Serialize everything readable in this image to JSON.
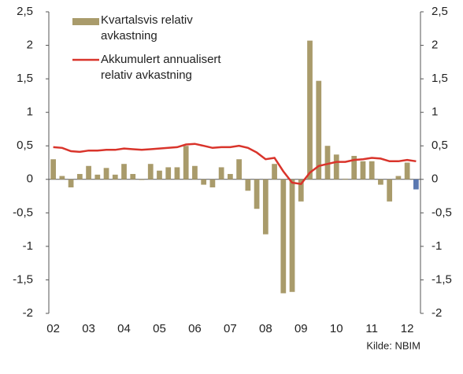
{
  "chart_data": {
    "type": "bar_line",
    "categories": [
      "02",
      null,
      null,
      null,
      "03",
      null,
      null,
      null,
      "04",
      null,
      null,
      null,
      "05",
      null,
      null,
      null,
      "06",
      null,
      null,
      null,
      "07",
      null,
      null,
      null,
      "08",
      null,
      null,
      null,
      "09",
      null,
      null,
      null,
      "10",
      null,
      null,
      null,
      "11",
      null,
      null,
      null,
      "12",
      null
    ],
    "series": [
      {
        "name": "Kvartalsvis relativ avkastning",
        "type": "bar",
        "color": "#a99b6b",
        "colors": [
          "#a99b6b",
          "#a99b6b",
          "#a99b6b",
          "#a99b6b",
          "#a99b6b",
          "#a99b6b",
          "#a99b6b",
          "#a99b6b",
          "#a99b6b",
          "#a99b6b",
          "#a99b6b",
          "#a99b6b",
          "#a99b6b",
          "#a99b6b",
          "#a99b6b",
          "#a99b6b",
          "#a99b6b",
          "#a99b6b",
          "#a99b6b",
          "#a99b6b",
          "#a99b6b",
          "#a99b6b",
          "#a99b6b",
          "#a99b6b",
          "#a99b6b",
          "#a99b6b",
          "#a99b6b",
          "#a99b6b",
          "#a99b6b",
          "#a99b6b",
          "#a99b6b",
          "#a99b6b",
          "#a99b6b",
          "#a99b6b",
          "#a99b6b",
          "#a99b6b",
          "#a99b6b",
          "#a99b6b",
          "#a99b6b",
          "#a99b6b",
          "#a99b6b",
          "#5a78b0"
        ],
        "values": [
          0.3,
          0.05,
          -0.12,
          0.08,
          0.2,
          0.07,
          0.17,
          0.07,
          0.23,
          0.08,
          -0.01,
          0.23,
          0.13,
          0.18,
          0.18,
          0.5,
          0.2,
          -0.08,
          -0.12,
          0.18,
          0.08,
          0.3,
          -0.17,
          -0.44,
          -0.82,
          0.23,
          -1.7,
          -1.68,
          -0.33,
          2.07,
          1.47,
          0.5,
          0.37,
          0.01,
          0.35,
          0.27,
          0.27,
          -0.08,
          -0.33,
          0.05,
          0.25,
          -0.15
        ]
      },
      {
        "name": "Akkumulert annualisert relativ avkastning",
        "type": "line",
        "color": "#d9342b",
        "values": [
          0.48,
          0.47,
          0.42,
          0.41,
          0.43,
          0.43,
          0.44,
          0.44,
          0.46,
          0.45,
          0.44,
          0.45,
          0.46,
          0.47,
          0.48,
          0.52,
          0.53,
          0.5,
          0.47,
          0.48,
          0.48,
          0.5,
          0.47,
          0.4,
          0.3,
          0.32,
          0.12,
          -0.05,
          -0.07,
          0.1,
          0.2,
          0.23,
          0.26,
          0.26,
          0.29,
          0.3,
          0.32,
          0.31,
          0.27,
          0.27,
          0.29,
          0.27
        ]
      }
    ],
    "ylim": [
      -2,
      2.5
    ],
    "yticks": [
      {
        "value": 2.5,
        "label": "2,5"
      },
      2,
      {
        "value": 1.5,
        "label": "1,5"
      },
      1,
      {
        "value": 0.5,
        "label": "0,5"
      },
      0,
      {
        "value": -0.5,
        "label": "-0,5"
      },
      -1,
      {
        "value": -1.5,
        "label": "-1,5"
      },
      -2
    ],
    "y2lim": [
      -2,
      2.5
    ],
    "y2ticks": [
      {
        "value": 2.5,
        "label": "2,5"
      },
      2,
      {
        "value": 1.5,
        "label": "1,5"
      },
      1,
      {
        "value": 0.5,
        "label": "0,5"
      },
      0,
      {
        "value": -0.5,
        "label": "-0,5"
      },
      -1,
      {
        "value": -1.5,
        "label": "-1,5"
      },
      -2
    ],
    "source": "Kilde: NBIM",
    "grid": false
  }
}
